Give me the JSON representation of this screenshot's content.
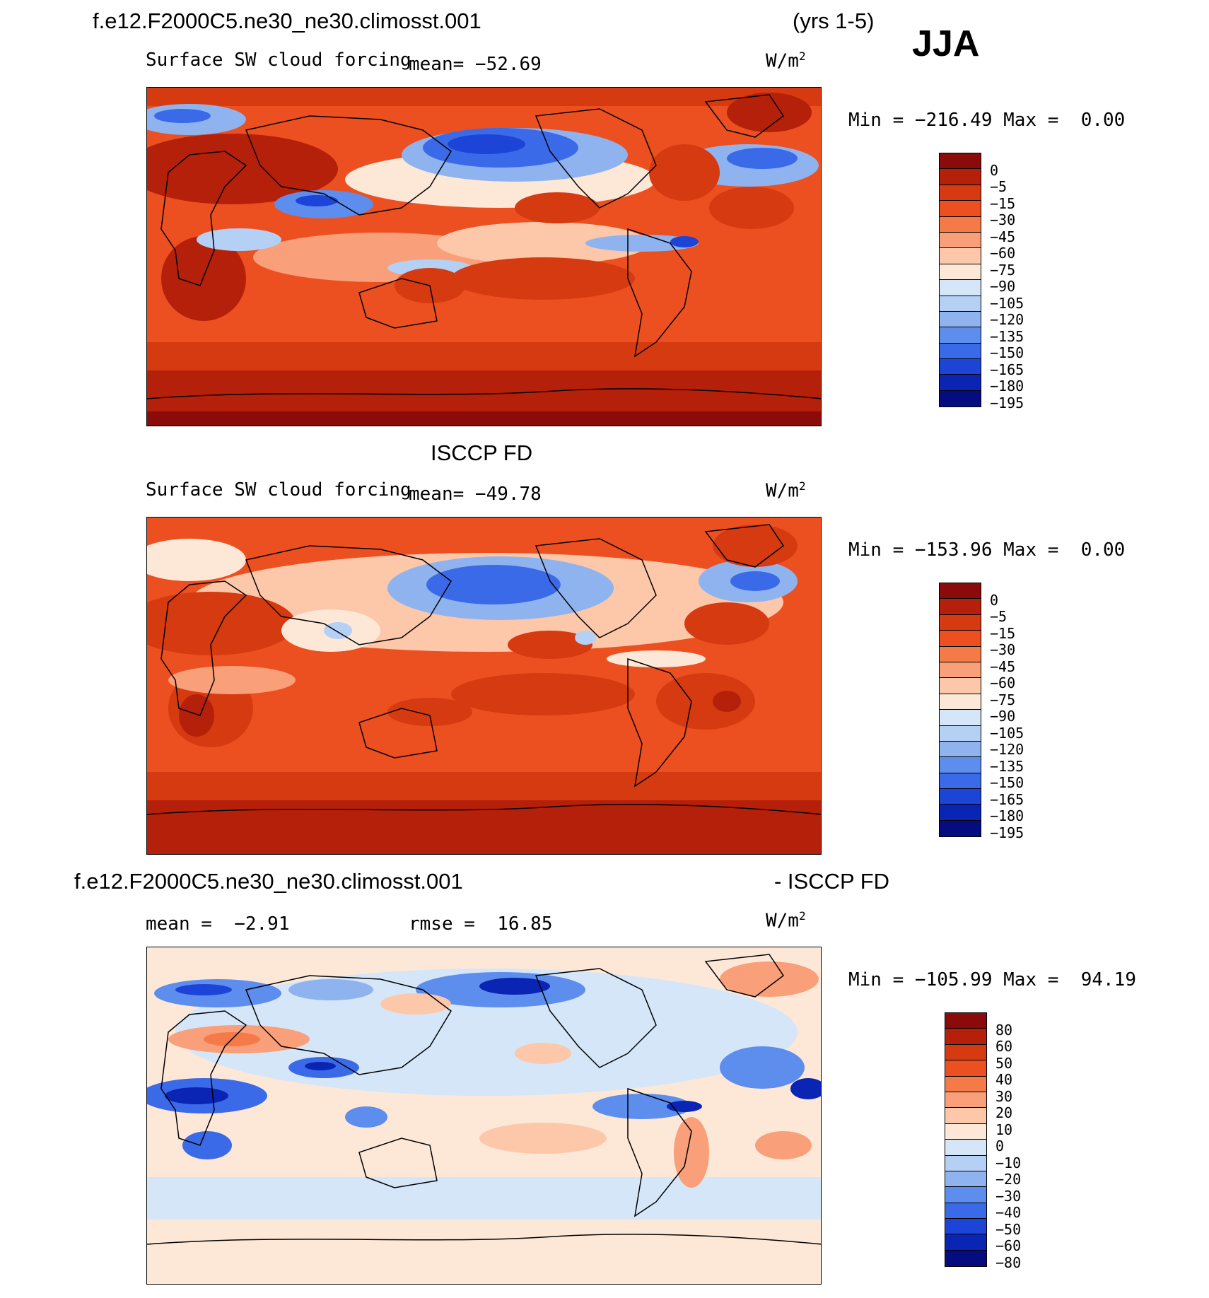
{
  "header": {
    "case": "f.e12.F2000C5.ne30_ne30.climosst.001",
    "years": "(yrs 1-5)",
    "season": "JJA"
  },
  "panels": [
    {
      "title": "",
      "variable": "Surface SW cloud forcing",
      "mean_text": "mean= −52.69",
      "units": "W/m",
      "units_sup": "2",
      "min_text": "Min = −216.49 Max =  0.00",
      "levels": [
        "0",
        "−5",
        "−15",
        "−30",
        "−45",
        "−60",
        "−75",
        "−90",
        "−105",
        "−120",
        "−135",
        "−150",
        "−165",
        "−180",
        "−195"
      ]
    },
    {
      "title": "ISCCP FD",
      "variable": "Surface SW cloud forcing",
      "mean_text": "mean= −49.78",
      "units": "W/m",
      "units_sup": "2",
      "min_text": "Min = −153.96 Max =  0.00",
      "levels": [
        "0",
        "−5",
        "−15",
        "−30",
        "−45",
        "−60",
        "−75",
        "−90",
        "−105",
        "−120",
        "−135",
        "−150",
        "−165",
        "−180",
        "−195"
      ]
    },
    {
      "title_left": "f.e12.F2000C5.ne30_ne30.climosst.001",
      "title_right": "- ISCCP FD",
      "mean_text": "mean =  −2.91",
      "rmse_text": "rmse =  16.85",
      "units": "W/m",
      "units_sup": "2",
      "min_text": "Min = −105.99 Max =  94.19",
      "levels": [
        "80",
        "60",
        "50",
        "40",
        "30",
        "20",
        "10",
        "0",
        "−10",
        "−20",
        "−30",
        "−40",
        "−50",
        "−60",
        "−80"
      ]
    }
  ],
  "colors": {
    "abs_scale": [
      "#8b0a0a",
      "#b5200a",
      "#d63a10",
      "#ec5020",
      "#f47a48",
      "#f99f7a",
      "#fdc7aa",
      "#fde8d8",
      "#d4e6f8",
      "#b4d0f4",
      "#8fb3ef",
      "#5d8ded",
      "#3a6ae8",
      "#1c45d8",
      "#0a24b4",
      "#040c80"
    ],
    "diff_scale": [
      "#8b0a0a",
      "#b5200a",
      "#d63a10",
      "#ec5020",
      "#f47a48",
      "#f99f7a",
      "#fdc7aa",
      "#fde8d8",
      "#d4e6f8",
      "#b4d0f4",
      "#8fb3ef",
      "#5d8ded",
      "#3a6ae8",
      "#1c45d8",
      "#0a24b4",
      "#040c80"
    ]
  }
}
